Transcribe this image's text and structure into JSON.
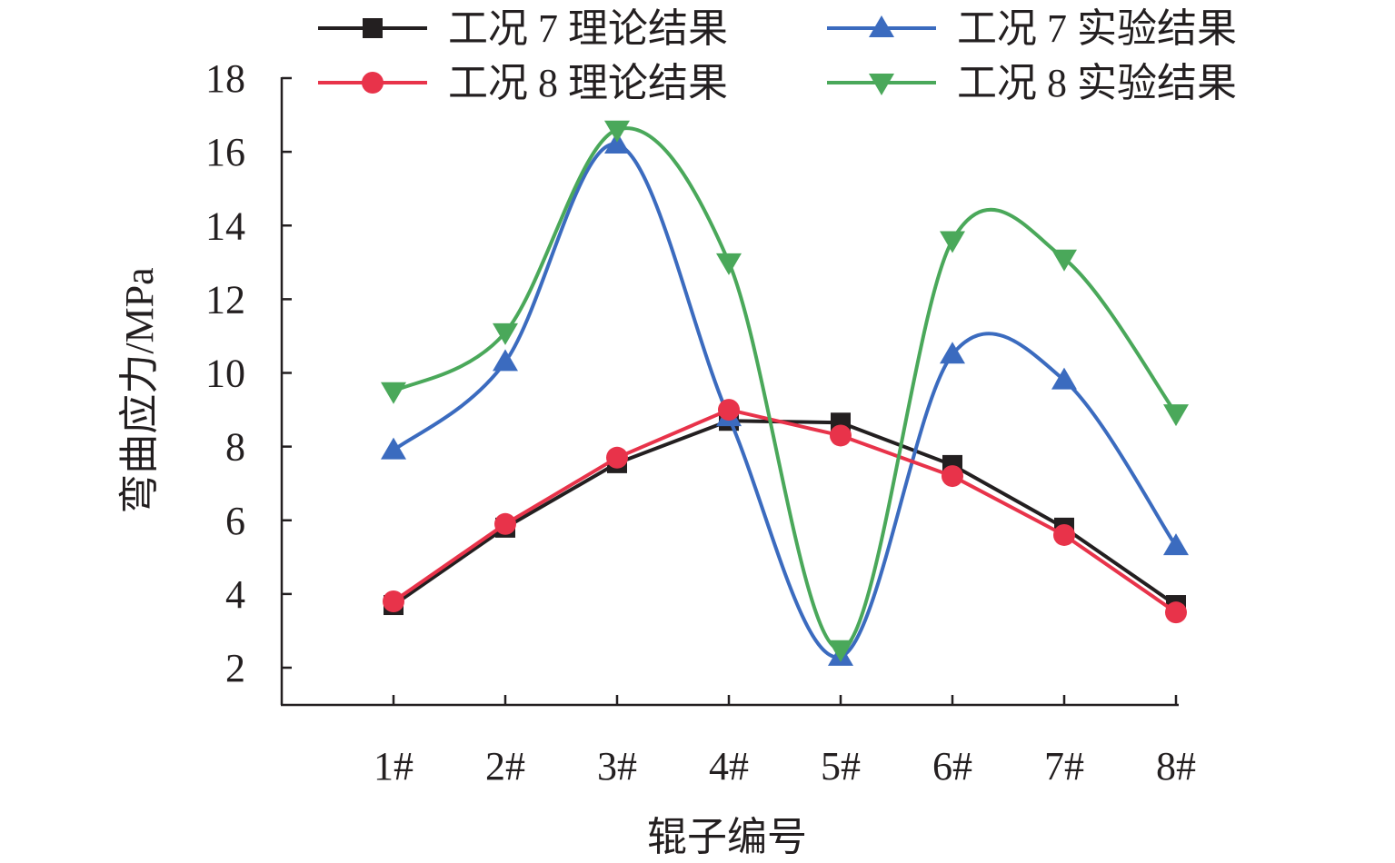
{
  "chart_data": {
    "type": "line",
    "categories": [
      "1#",
      "2#",
      "3#",
      "4#",
      "5#",
      "6#",
      "7#",
      "8#"
    ],
    "xlabel": "辊子编号",
    "ylabel": "弯曲应力/MPa",
    "ylim": [
      2,
      18
    ],
    "yticks": [
      2,
      4,
      6,
      8,
      10,
      12,
      14,
      16,
      18
    ],
    "grid": false,
    "legend_position": "top",
    "series": [
      {
        "name": "工况 7 理论结果",
        "color": "#231f20",
        "marker": "square",
        "smooth": false,
        "values": [
          3.7,
          5.8,
          7.55,
          8.7,
          8.65,
          7.5,
          5.8,
          3.7
        ]
      },
      {
        "name": "工况 7 实验结果",
        "color": "#3b6bbf",
        "marker": "triangle-up",
        "smooth": true,
        "values": [
          7.9,
          10.3,
          16.2,
          8.8,
          2.3,
          10.5,
          9.8,
          5.3
        ]
      },
      {
        "name": "工况 8 理论结果",
        "color": "#e8334a",
        "marker": "circle",
        "smooth": false,
        "values": [
          3.8,
          5.9,
          7.7,
          9.0,
          8.3,
          7.2,
          5.6,
          3.5
        ]
      },
      {
        "name": "工况 8 实验结果",
        "color": "#4aa85a",
        "marker": "triangle-down",
        "smooth": true,
        "values": [
          9.5,
          11.1,
          16.6,
          13.0,
          2.5,
          13.6,
          13.1,
          8.9
        ]
      }
    ]
  }
}
